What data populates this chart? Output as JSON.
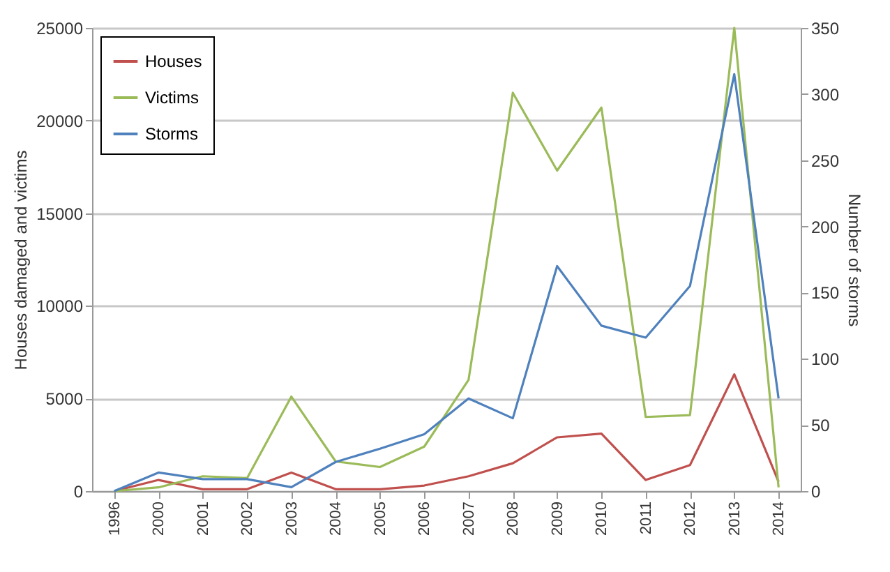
{
  "chart_data": {
    "type": "line",
    "categories": [
      "1996",
      "2000",
      "2001",
      "2002",
      "2003",
      "2004",
      "2005",
      "2006",
      "2007",
      "2008",
      "2009",
      "2010",
      "2011",
      "2012",
      "2013",
      "2014"
    ],
    "ylabel": "Houses damaged and victims",
    "y2label": "Number of storms",
    "ylim": [
      0,
      25000
    ],
    "yticks": [
      0,
      5000,
      10000,
      15000,
      20000,
      25000
    ],
    "y2lim": [
      0,
      350
    ],
    "y2ticks": [
      0,
      50,
      100,
      150,
      200,
      250,
      300,
      350
    ],
    "grid": "y",
    "legend": "top left",
    "series": [
      {
        "name": "Houses",
        "color": "#c0504d",
        "values": [
          0,
          600,
          100,
          100,
          1000,
          100,
          100,
          300,
          800,
          1500,
          2900,
          3100,
          600,
          1400,
          6300,
          500
        ]
      },
      {
        "name": "Victims",
        "color": "#9bbb59",
        "values": [
          0,
          200,
          800,
          700,
          5100,
          1600,
          1300,
          2400,
          6000,
          21500,
          17300,
          20700,
          4000,
          4100,
          25000,
          200
        ]
      },
      {
        "name": "Storms",
        "color": "#4f81bd",
        "axis": "y2",
        "values": [
          0,
          14,
          9,
          9,
          3,
          22,
          32,
          43,
          70,
          55,
          170,
          125,
          116,
          155,
          315,
          70
        ]
      }
    ]
  }
}
